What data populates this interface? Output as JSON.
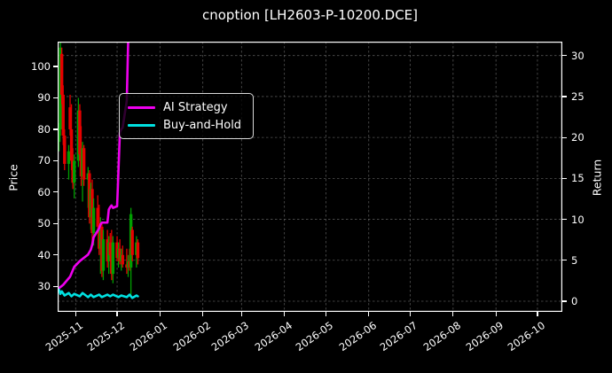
{
  "colors": {
    "background": "#000000",
    "text": "#ffffff",
    "spine": "#ffffff",
    "grid": "#6f6f6f",
    "candle_up": "#00a000",
    "candle_down": "#e60000",
    "ai_strategy": "#ee00ee",
    "buy_and_hold": "#00e0e0"
  },
  "chart_data": {
    "type": "candlestick+line",
    "title": "cnoption [LH2603-P-10200.DCE]",
    "grid": true,
    "legend_position": "upper left",
    "x_axis": {
      "min": "2025-10-19",
      "max": "2026-10-19",
      "ticks": [
        {
          "d": "2025-11-01",
          "label": "2025-11"
        },
        {
          "d": "2025-12-01",
          "label": "2025-12"
        },
        {
          "d": "2026-01-01",
          "label": "2026-01"
        },
        {
          "d": "2026-02-01",
          "label": "2026-02"
        },
        {
          "d": "2026-03-01",
          "label": "2026-03"
        },
        {
          "d": "2026-04-01",
          "label": "2026-04"
        },
        {
          "d": "2026-05-01",
          "label": "2026-05"
        },
        {
          "d": "2026-06-01",
          "label": "2026-06"
        },
        {
          "d": "2026-07-01",
          "label": "2026-07"
        },
        {
          "d": "2026-08-01",
          "label": "2026-08"
        },
        {
          "d": "2026-09-01",
          "label": "2026-09"
        },
        {
          "d": "2026-10-01",
          "label": "2026-10"
        }
      ]
    },
    "price_axis": {
      "label": "Price",
      "min": 21.9,
      "max": 107.9,
      "ticks": [
        30,
        40,
        50,
        60,
        70,
        80,
        90,
        100
      ]
    },
    "return_axis": {
      "label": "Return",
      "min": -1.3,
      "max": 31.7,
      "ticks": [
        0,
        5,
        10,
        15,
        20,
        25,
        30
      ]
    },
    "candles": {
      "columns": [
        "date",
        "open",
        "high",
        "low",
        "close"
      ],
      "rows": [
        [
          "2025-10-20",
          76,
          82,
          73,
          80
        ],
        [
          "2025-10-21",
          80,
          108,
          78,
          106
        ],
        [
          "2025-10-22",
          104,
          106,
          88,
          91
        ],
        [
          "2025-10-23",
          91,
          94,
          75,
          78
        ],
        [
          "2025-10-24",
          78,
          80,
          67,
          69
        ],
        [
          "2025-10-27",
          69,
          75,
          64,
          73
        ],
        [
          "2025-10-28",
          87,
          91,
          78,
          80
        ],
        [
          "2025-10-29",
          80,
          88,
          67,
          70
        ],
        [
          "2025-10-30",
          70,
          74,
          61,
          63
        ],
        [
          "2025-10-31",
          63,
          72,
          58,
          70
        ],
        [
          "2025-11-03",
          70,
          90,
          68,
          86
        ],
        [
          "2025-11-04",
          86,
          88,
          70,
          72
        ],
        [
          "2025-11-05",
          72,
          81,
          62,
          65
        ],
        [
          "2025-11-06",
          65,
          76,
          57,
          74
        ],
        [
          "2025-11-07",
          74,
          75,
          62,
          64
        ],
        [
          "2025-11-10",
          64,
          68,
          55,
          66
        ],
        [
          "2025-11-11",
          66,
          67,
          50,
          52
        ],
        [
          "2025-11-12",
          52,
          63,
          48,
          61
        ],
        [
          "2025-11-13",
          61,
          64,
          44,
          47
        ],
        [
          "2025-11-14",
          47,
          58,
          43,
          55
        ],
        [
          "2025-11-17",
          55,
          59,
          47,
          49
        ],
        [
          "2025-11-18",
          49,
          56,
          40,
          42
        ],
        [
          "2025-11-19",
          42,
          52,
          34,
          49
        ],
        [
          "2025-11-20",
          49,
          50,
          33,
          35
        ],
        [
          "2025-11-21",
          35,
          48,
          32,
          45
        ],
        [
          "2025-11-24",
          45,
          48,
          36,
          38
        ],
        [
          "2025-11-25",
          38,
          46,
          34,
          44
        ],
        [
          "2025-11-26",
          44,
          47,
          38,
          40
        ],
        [
          "2025-11-27",
          40,
          48,
          32,
          34
        ],
        [
          "2025-11-28",
          34,
          46,
          31,
          44
        ],
        [
          "2025-12-01",
          44,
          46,
          38,
          39
        ],
        [
          "2025-12-02",
          39,
          44,
          36,
          42
        ],
        [
          "2025-12-03",
          42,
          45,
          37,
          38
        ],
        [
          "2025-12-04",
          38,
          42,
          35,
          40
        ],
        [
          "2025-12-05",
          40,
          43,
          36,
          37
        ],
        [
          "2025-12-08",
          37,
          42,
          34,
          36
        ],
        [
          "2025-12-09",
          36,
          40,
          33,
          38
        ],
        [
          "2025-12-10",
          38,
          42,
          35,
          36
        ],
        [
          "2025-12-11",
          36,
          55,
          27,
          53
        ],
        [
          "2025-12-12",
          48,
          49,
          38,
          40
        ],
        [
          "2025-12-15",
          40,
          46,
          36,
          44
        ],
        [
          "2025-12-16",
          44,
          45,
          37,
          39
        ]
      ]
    },
    "series": [
      {
        "name": "AI Strategy",
        "axis": "return",
        "color": "#ee00ee",
        "points": [
          [
            "2025-10-20",
            1.6
          ],
          [
            "2025-10-23",
            2.0
          ],
          [
            "2025-10-28",
            3.0
          ],
          [
            "2025-10-31",
            4.2
          ],
          [
            "2025-11-04",
            4.9
          ],
          [
            "2025-11-07",
            5.3
          ],
          [
            "2025-11-10",
            5.7
          ],
          [
            "2025-11-12",
            6.3
          ],
          [
            "2025-11-13",
            6.9
          ],
          [
            "2025-11-14",
            7.8
          ],
          [
            "2025-11-18",
            8.9
          ],
          [
            "2025-11-19",
            9.4
          ],
          [
            "2025-11-20",
            9.6
          ],
          [
            "2025-11-24",
            9.6
          ],
          [
            "2025-11-25",
            11.2
          ],
          [
            "2025-11-26",
            11.5
          ],
          [
            "2025-11-27",
            11.7
          ],
          [
            "2025-11-28",
            11.4
          ],
          [
            "2025-12-01",
            11.6
          ],
          [
            "2025-12-02",
            16.0
          ],
          [
            "2025-12-03",
            20.6
          ],
          [
            "2025-12-04",
            21.0
          ],
          [
            "2025-12-05",
            21.2
          ],
          [
            "2025-12-08",
            24.5
          ],
          [
            "2025-12-09",
            31.7
          ]
        ]
      },
      {
        "name": "Buy-and-Hold",
        "axis": "return",
        "color": "#00e0e0",
        "points": [
          [
            "2025-10-20",
            1.4
          ],
          [
            "2025-10-21",
            0.9
          ],
          [
            "2025-10-22",
            1.2
          ],
          [
            "2025-10-24",
            0.7
          ],
          [
            "2025-10-27",
            1.0
          ],
          [
            "2025-10-29",
            0.6
          ],
          [
            "2025-10-31",
            0.9
          ],
          [
            "2025-11-04",
            0.6
          ],
          [
            "2025-11-06",
            1.0
          ],
          [
            "2025-11-10",
            0.5
          ],
          [
            "2025-11-12",
            0.8
          ],
          [
            "2025-11-14",
            0.5
          ],
          [
            "2025-11-18",
            0.8
          ],
          [
            "2025-11-20",
            0.5
          ],
          [
            "2025-11-24",
            0.8
          ],
          [
            "2025-11-26",
            0.6
          ],
          [
            "2025-11-28",
            0.8
          ],
          [
            "2025-12-02",
            0.5
          ],
          [
            "2025-12-04",
            0.7
          ],
          [
            "2025-12-08",
            0.5
          ],
          [
            "2025-12-10",
            0.8
          ],
          [
            "2025-12-12",
            0.4
          ],
          [
            "2025-12-15",
            0.7
          ],
          [
            "2025-12-16",
            0.6
          ]
        ]
      }
    ]
  }
}
